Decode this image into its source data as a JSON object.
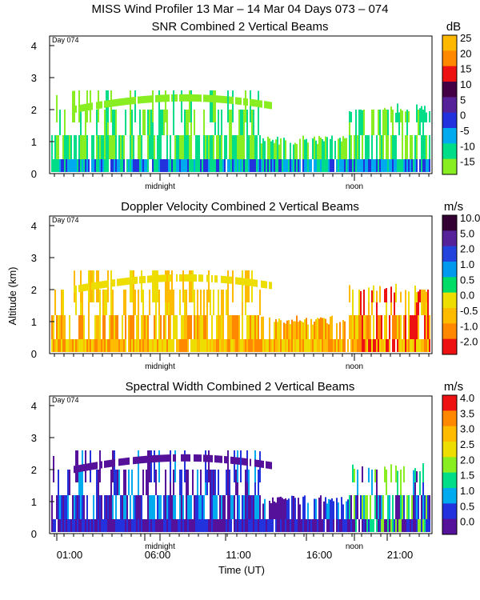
{
  "title": "MISS Wind Profiler  13 Mar – 14 Mar 04 Days 073 – 074",
  "shared": {
    "ylabel": "Altitude (km)",
    "xlabel": "Time (UT)",
    "day_marker": "Day 074",
    "midnight_label": "midnight",
    "noon_label": "noon",
    "y_ticks": [
      "0",
      "1",
      "2",
      "3",
      "4"
    ],
    "x_ticks": [
      "01:00",
      "06:00",
      "11:00",
      "16:00",
      "21:00"
    ]
  },
  "chart_data": [
    {
      "type": "heatmap",
      "title": "SNR Combined 2 Vertical Beams",
      "unit": "dB",
      "xlabel": "",
      "ylabel": "Altitude (km)",
      "ylim": [
        0,
        4.3
      ],
      "colorbar": {
        "labels": [
          "25",
          "20",
          "15",
          "10",
          "5",
          "0",
          "-5",
          "-10",
          "-15"
        ],
        "colors": [
          "#ffb800",
          "#ff8800",
          "#ee1111",
          "#440044",
          "#552299",
          "#2233dd",
          "#00aaee",
          "#00dd88",
          "#88ee22"
        ]
      }
    },
    {
      "type": "heatmap",
      "title": "Doppler Velocity Combined 2 Vertical Beams",
      "unit": "m/s",
      "xlabel": "",
      "ylabel": "Altitude (km)",
      "ylim": [
        0,
        4.3
      ],
      "colorbar": {
        "labels": [
          "10.0",
          "5.0",
          "2.0",
          "1.0",
          "0.5",
          "0.0",
          "-0.5",
          "-1.0",
          "-2.0"
        ],
        "colors": [
          "#330033",
          "#552299",
          "#2244dd",
          "#0099ee",
          "#00dd66",
          "#eedd00",
          "#ffbb00",
          "#ff8800",
          "#ee1111"
        ]
      }
    },
    {
      "type": "heatmap",
      "title": "Spectral Width Combined 2 Vertical Beams",
      "unit": "m/s",
      "xlabel": "Time (UT)",
      "ylabel": "Altitude (km)",
      "ylim": [
        0,
        4.3
      ],
      "colorbar": {
        "labels": [
          "4.0",
          "3.5",
          "3.0",
          "2.5",
          "2.0",
          "1.5",
          "1.0",
          "0.5",
          "0.0"
        ],
        "colors": [
          "#ee1111",
          "#ff8800",
          "#ffbb00",
          "#eedd00",
          "#88ee22",
          "#00dd88",
          "#00aaee",
          "#2233dd",
          "#551199"
        ]
      }
    }
  ]
}
